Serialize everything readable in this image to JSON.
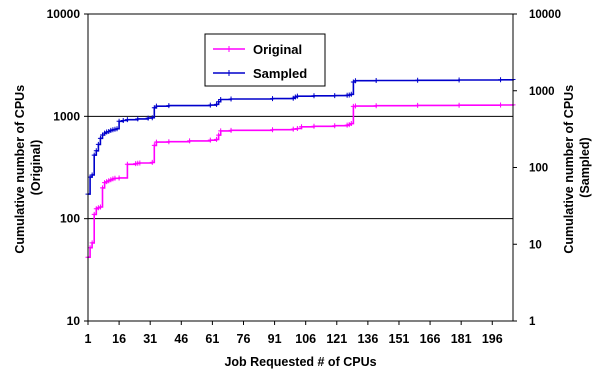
{
  "chart_data": {
    "type": "line",
    "title": "",
    "xlabel": "Job Requested # of CPUs",
    "ylabel_left": "Cumulative number of CPUs (Original)",
    "ylabel_left_lines": [
      "Cumulative number of CPUs",
      "(Original)"
    ],
    "ylabel_right": "Cumulative number of CPUs (Sampled)",
    "ylabel_right_lines": [
      "Cumulative number of CPUs",
      "(Sampled)"
    ],
    "yscale_left": "log",
    "yscale_right": "log",
    "ylim_left": [
      10,
      10000
    ],
    "ylim_right": [
      1,
      10000
    ],
    "xlim": [
      1,
      206
    ],
    "left_ticks": [
      "10",
      "100",
      "1000",
      "10000"
    ],
    "right_ticks": [
      "1",
      "10",
      "100",
      "1000",
      "10000"
    ],
    "x_tick_labels": [
      "1",
      "16",
      "31",
      "46",
      "61",
      "76",
      "91",
      "106",
      "121",
      "136",
      "151",
      "166",
      "181",
      "196"
    ],
    "grid": "horizontal lines at left-axis decades",
    "legend_position": "top-center",
    "series": [
      {
        "name": "Original",
        "axis": "left",
        "color": "#ff00ff",
        "marker": "plus",
        "x": [
          1,
          2,
          3,
          4,
          5,
          6,
          7,
          8,
          9,
          10,
          11,
          12,
          13,
          14,
          16,
          20,
          24,
          25,
          26,
          32,
          33,
          34,
          40,
          50,
          60,
          63,
          64,
          65,
          70,
          90,
          100,
          102,
          104,
          110,
          120,
          126,
          127,
          128,
          129,
          130,
          140,
          160,
          180,
          200,
          206
        ],
        "y": [
          42,
          52,
          58,
          110,
          125,
          128,
          130,
          200,
          225,
          230,
          235,
          240,
          245,
          248,
          250,
          340,
          345,
          348,
          350,
          355,
          520,
          560,
          565,
          575,
          585,
          595,
          655,
          720,
          730,
          740,
          750,
          760,
          790,
          800,
          810,
          820,
          830,
          850,
          1250,
          1260,
          1270,
          1280,
          1285,
          1290,
          1295
        ]
      },
      {
        "name": "Sampled",
        "axis": "right",
        "color": "#0000cc",
        "marker": "plus",
        "x": [
          1,
          2,
          3,
          4,
          5,
          6,
          7,
          8,
          9,
          10,
          11,
          12,
          13,
          14,
          15,
          16,
          18,
          20,
          25,
          30,
          32,
          33,
          34,
          40,
          60,
          63,
          64,
          65,
          70,
          90,
          100,
          101,
          102,
          110,
          120,
          126,
          127,
          128,
          129,
          130,
          140,
          160,
          180,
          200,
          206
        ],
        "y": [
          45,
          75,
          80,
          145,
          165,
          200,
          240,
          265,
          280,
          290,
          295,
          305,
          310,
          315,
          320,
          400,
          410,
          420,
          430,
          440,
          445,
          600,
          630,
          640,
          650,
          665,
          720,
          770,
          780,
          790,
          800,
          830,
          850,
          860,
          865,
          875,
          880,
          900,
          1300,
          1350,
          1360,
          1370,
          1380,
          1390,
          1400
        ]
      }
    ]
  }
}
